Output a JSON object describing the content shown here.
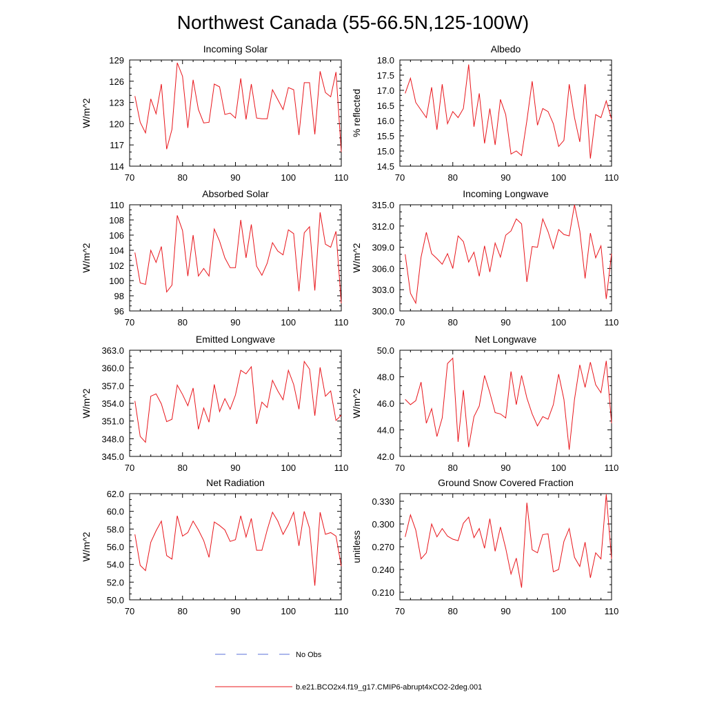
{
  "figure": {
    "title": "Northwest Canada (55-66.5N,125-100W)",
    "legend": [
      {
        "label": "No Obs",
        "color": "#5a6fd8",
        "style": "dashed"
      },
      {
        "label": "b.e21.BCO2x4.f19_g17.CMIP6-abrupt4xCO2-2deg.001",
        "color": "#e8141a",
        "style": "solid"
      }
    ]
  },
  "chart_data": [
    {
      "type": "line",
      "title": "Incoming Solar",
      "ylabel": "W/m^2",
      "xlim": [
        70,
        110
      ],
      "ylim": [
        114,
        129
      ],
      "yticks": [
        114,
        117,
        120,
        123,
        126,
        129
      ],
      "ytick_labels": [
        "114",
        "117",
        "120",
        "123",
        "126",
        "129"
      ],
      "xticks": [
        70,
        80,
        90,
        100,
        110
      ],
      "xtick_labels": [
        "70",
        "80",
        "90",
        "100",
        "110"
      ],
      "x": [
        71,
        72,
        73,
        74,
        75,
        76,
        77,
        78,
        79,
        80,
        81,
        82,
        83,
        84,
        85,
        86,
        87,
        88,
        89,
        90,
        91,
        92,
        93,
        94,
        95,
        96,
        97,
        98,
        99,
        100,
        101,
        102,
        103,
        104,
        105,
        106,
        107,
        108,
        109,
        110
      ],
      "series": [
        {
          "name": "b.e21.BCO2x4.f19_g17.CMIP6-abrupt4xCO2-2deg.001",
          "values": [
            123.9,
            120.2,
            118.7,
            123.5,
            121.4,
            125.6,
            116.4,
            119.2,
            128.6,
            126.7,
            119.4,
            126.2,
            122.0,
            120.1,
            120.2,
            125.6,
            125.2,
            121.3,
            121.5,
            120.8,
            126.4,
            120.6,
            125.6,
            120.8,
            120.7,
            120.7,
            124.8,
            123.4,
            122.0,
            125.1,
            124.8,
            118.4,
            125.8,
            125.8,
            118.5,
            127.4,
            124.4,
            123.8,
            127.3,
            116.0
          ]
        }
      ]
    },
    {
      "type": "line",
      "title": "Albedo",
      "ylabel": "% reflected",
      "xlim": [
        70,
        110
      ],
      "ylim": [
        14.5,
        18.0
      ],
      "yticks": [
        14.5,
        15.0,
        15.5,
        16.0,
        16.5,
        17.0,
        17.5,
        18.0
      ],
      "ytick_labels": [
        "14.5",
        "15.0",
        "15.5",
        "16.0",
        "16.5",
        "17.0",
        "17.5",
        "18.0"
      ],
      "xticks": [
        70,
        80,
        90,
        100,
        110
      ],
      "xtick_labels": [
        "70",
        "80",
        "90",
        "100",
        "110"
      ],
      "x": [
        71,
        72,
        73,
        74,
        75,
        76,
        77,
        78,
        79,
        80,
        81,
        82,
        83,
        84,
        85,
        86,
        87,
        88,
        89,
        90,
        91,
        92,
        93,
        94,
        95,
        96,
        97,
        98,
        99,
        100,
        101,
        102,
        103,
        104,
        105,
        106,
        107,
        108,
        109,
        110
      ],
      "series": [
        {
          "name": "b.e21.BCO2x4.f19_g17.CMIP6-abrupt4xCO2-2deg.001",
          "values": [
            16.9,
            17.4,
            16.6,
            16.35,
            16.1,
            17.1,
            15.7,
            17.2,
            15.9,
            16.3,
            16.1,
            16.4,
            17.85,
            15.8,
            16.9,
            15.25,
            16.4,
            15.2,
            16.7,
            16.2,
            14.9,
            15.0,
            14.85,
            16.0,
            17.3,
            15.85,
            16.4,
            16.3,
            15.9,
            15.15,
            15.35,
            17.2,
            16.1,
            15.3,
            17.2,
            14.75,
            16.2,
            16.1,
            16.65,
            16.05
          ]
        }
      ]
    },
    {
      "type": "line",
      "title": "Absorbed Solar",
      "ylabel": "W/m^2",
      "xlim": [
        70,
        110
      ],
      "ylim": [
        96,
        110
      ],
      "yticks": [
        96,
        98,
        100,
        102,
        104,
        106,
        108,
        110
      ],
      "ytick_labels": [
        "96",
        "98",
        "100",
        "102",
        "104",
        "106",
        "108",
        "110"
      ],
      "xticks": [
        70,
        80,
        90,
        100,
        110
      ],
      "xtick_labels": [
        "70",
        "80",
        "90",
        "100",
        "110"
      ],
      "x": [
        71,
        72,
        73,
        74,
        75,
        76,
        77,
        78,
        79,
        80,
        81,
        82,
        83,
        84,
        85,
        86,
        87,
        88,
        89,
        90,
        91,
        92,
        93,
        94,
        95,
        96,
        97,
        98,
        99,
        100,
        101,
        102,
        103,
        104,
        105,
        106,
        107,
        108,
        109,
        110
      ],
      "series": [
        {
          "name": "b.e21.BCO2x4.f19_g17.CMIP6-abrupt4xCO2-2deg.001",
          "values": [
            103.7,
            99.7,
            99.5,
            104.0,
            102.4,
            104.5,
            98.5,
            99.4,
            108.6,
            106.6,
            100.6,
            106.0,
            100.6,
            101.6,
            100.6,
            106.8,
            105.2,
            103.0,
            101.7,
            101.7,
            108.0,
            103.0,
            107.4,
            101.9,
            100.7,
            102.3,
            105.0,
            103.9,
            103.4,
            106.7,
            106.2,
            98.6,
            106.3,
            107.1,
            98.7,
            109.0,
            104.8,
            104.4,
            106.5,
            97.0
          ]
        }
      ]
    },
    {
      "type": "line",
      "title": "Incoming Longwave",
      "ylabel": "W/m^2",
      "xlim": [
        70,
        110
      ],
      "ylim": [
        300.0,
        315.0
      ],
      "yticks": [
        300,
        303,
        306,
        309,
        312,
        315
      ],
      "ytick_labels": [
        "300.0",
        "303.0",
        "306.0",
        "309.0",
        "312.0",
        "315.0"
      ],
      "xticks": [
        70,
        80,
        90,
        100,
        110
      ],
      "xtick_labels": [
        "70",
        "80",
        "90",
        "100",
        "110"
      ],
      "x": [
        71,
        72,
        73,
        74,
        75,
        76,
        77,
        78,
        79,
        80,
        81,
        82,
        83,
        84,
        85,
        86,
        87,
        88,
        89,
        90,
        91,
        92,
        93,
        94,
        95,
        96,
        97,
        98,
        99,
        100,
        101,
        102,
        103,
        104,
        105,
        106,
        107,
        108,
        109,
        110
      ],
      "series": [
        {
          "name": "b.e21.BCO2x4.f19_g17.CMIP6-abrupt4xCO2-2deg.001",
          "values": [
            308.0,
            302.5,
            301.1,
            307.6,
            311.1,
            308.1,
            307.4,
            306.6,
            308.1,
            306.0,
            310.6,
            309.8,
            306.9,
            308.3,
            304.9,
            309.2,
            305.5,
            309.6,
            307.6,
            310.7,
            311.3,
            313.0,
            312.3,
            304.1,
            309.1,
            309.0,
            313.0,
            311.2,
            308.8,
            311.5,
            310.8,
            310.6,
            315.0,
            311.3,
            304.6,
            311.0,
            307.5,
            309.2,
            301.7,
            308.1
          ]
        }
      ]
    },
    {
      "type": "line",
      "title": "Emitted Longwave",
      "ylabel": "W/m^2",
      "xlim": [
        70,
        110
      ],
      "ylim": [
        345.0,
        363.0
      ],
      "yticks": [
        345,
        348,
        351,
        354,
        357,
        360,
        363
      ],
      "ytick_labels": [
        "345.0",
        "348.0",
        "351.0",
        "354.0",
        "357.0",
        "360.0",
        "363.0"
      ],
      "xticks": [
        70,
        80,
        90,
        100,
        110
      ],
      "xtick_labels": [
        "70",
        "80",
        "90",
        "100",
        "110"
      ],
      "x": [
        71,
        72,
        73,
        74,
        75,
        76,
        77,
        78,
        79,
        80,
        81,
        82,
        83,
        84,
        85,
        86,
        87,
        88,
        89,
        90,
        91,
        92,
        93,
        94,
        95,
        96,
        97,
        98,
        99,
        100,
        101,
        102,
        103,
        104,
        105,
        106,
        107,
        108,
        109,
        110
      ],
      "series": [
        {
          "name": "b.e21.BCO2x4.f19_g17.CMIP6-abrupt4xCO2-2deg.001",
          "values": [
            354.4,
            348.4,
            347.4,
            355.2,
            355.6,
            353.9,
            350.9,
            351.3,
            357.1,
            355.5,
            353.6,
            356.6,
            349.6,
            353.2,
            350.8,
            357.2,
            352.6,
            354.8,
            353.0,
            355.4,
            359.6,
            359.0,
            360.2,
            350.5,
            354.2,
            353.3,
            357.9,
            356.1,
            354.6,
            359.6,
            357.2,
            353.0,
            361.1,
            359.8,
            351.9,
            360.1,
            355.2,
            356.1,
            351.1,
            352.0
          ]
        }
      ]
    },
    {
      "type": "line",
      "title": "Net Longwave",
      "ylabel": "W/m^2",
      "xlim": [
        70,
        110
      ],
      "ylim": [
        42.0,
        50.0
      ],
      "yticks": [
        42,
        44,
        46,
        48,
        50
      ],
      "ytick_labels": [
        "42.0",
        "44.0",
        "46.0",
        "48.0",
        "50.0"
      ],
      "xticks": [
        70,
        80,
        90,
        100,
        110
      ],
      "xtick_labels": [
        "70",
        "80",
        "90",
        "100",
        "110"
      ],
      "x": [
        71,
        72,
        73,
        74,
        75,
        76,
        77,
        78,
        79,
        80,
        81,
        82,
        83,
        84,
        85,
        86,
        87,
        88,
        89,
        90,
        91,
        92,
        93,
        94,
        95,
        96,
        97,
        98,
        99,
        100,
        101,
        102,
        103,
        104,
        105,
        106,
        107,
        108,
        109,
        110
      ],
      "series": [
        {
          "name": "b.e21.BCO2x4.f19_g17.CMIP6-abrupt4xCO2-2deg.001",
          "values": [
            46.3,
            45.9,
            46.2,
            47.6,
            44.5,
            45.6,
            43.5,
            44.9,
            49.0,
            49.4,
            43.1,
            47.0,
            42.7,
            45.0,
            45.8,
            48.1,
            46.8,
            45.3,
            45.2,
            44.9,
            48.4,
            45.9,
            48.1,
            46.4,
            45.2,
            44.3,
            45.0,
            44.8,
            45.9,
            48.2,
            46.3,
            42.5,
            46.3,
            48.9,
            47.2,
            49.1,
            47.4,
            46.8,
            49.2,
            44.5
          ]
        }
      ]
    },
    {
      "type": "line",
      "title": "Net Radiation",
      "ylabel": "W/m^2",
      "xlim": [
        70,
        110
      ],
      "ylim": [
        50.0,
        62.0
      ],
      "yticks": [
        50,
        52,
        54,
        56,
        58,
        60,
        62
      ],
      "ytick_labels": [
        "50.0",
        "52.0",
        "54.0",
        "56.0",
        "58.0",
        "60.0",
        "62.0"
      ],
      "xticks": [
        70,
        80,
        90,
        100,
        110
      ],
      "xtick_labels": [
        "70",
        "80",
        "90",
        "100",
        "110"
      ],
      "x": [
        71,
        72,
        73,
        74,
        75,
        76,
        77,
        78,
        79,
        80,
        81,
        82,
        83,
        84,
        85,
        86,
        87,
        88,
        89,
        90,
        91,
        92,
        93,
        94,
        95,
        96,
        97,
        98,
        99,
        100,
        101,
        102,
        103,
        104,
        105,
        106,
        107,
        108,
        109,
        110
      ],
      "series": [
        {
          "name": "b.e21.BCO2x4.f19_g17.CMIP6-abrupt4xCO2-2deg.001",
          "values": [
            57.4,
            53.9,
            53.3,
            56.5,
            57.8,
            58.9,
            55.0,
            54.6,
            59.5,
            57.2,
            57.6,
            58.9,
            57.9,
            56.7,
            54.8,
            58.8,
            58.4,
            57.9,
            56.6,
            56.8,
            59.5,
            57.1,
            59.2,
            55.6,
            55.6,
            57.9,
            59.9,
            58.9,
            57.4,
            58.5,
            59.9,
            56.1,
            60.0,
            58.1,
            51.6,
            59.9,
            57.4,
            57.6,
            57.2,
            53.8
          ]
        }
      ]
    },
    {
      "type": "line",
      "title": "Ground Snow Covered Fraction",
      "ylabel": "unitless",
      "xlim": [
        70,
        110
      ],
      "ylim": [
        0.2,
        0.34
      ],
      "yticks": [
        0.21,
        0.24,
        0.27,
        0.3,
        0.33
      ],
      "ytick_labels": [
        "0.210",
        "0.240",
        "0.270",
        "0.300",
        "0.330"
      ],
      "xticks": [
        70,
        80,
        90,
        100,
        110
      ],
      "xtick_labels": [
        "70",
        "80",
        "90",
        "100",
        "110"
      ],
      "x": [
        71,
        72,
        73,
        74,
        75,
        76,
        77,
        78,
        79,
        80,
        81,
        82,
        83,
        84,
        85,
        86,
        87,
        88,
        89,
        90,
        91,
        92,
        93,
        94,
        95,
        96,
        97,
        98,
        99,
        100,
        101,
        102,
        103,
        104,
        105,
        106,
        107,
        108,
        109,
        110
      ],
      "series": [
        {
          "name": "b.e21.BCO2x4.f19_g17.CMIP6-abrupt4xCO2-2deg.001",
          "values": [
            0.283,
            0.312,
            0.292,
            0.254,
            0.262,
            0.3,
            0.283,
            0.294,
            0.284,
            0.28,
            0.278,
            0.301,
            0.309,
            0.282,
            0.294,
            0.268,
            0.307,
            0.264,
            0.296,
            0.268,
            0.234,
            0.255,
            0.216,
            0.328,
            0.266,
            0.262,
            0.286,
            0.287,
            0.237,
            0.24,
            0.277,
            0.294,
            0.256,
            0.244,
            0.276,
            0.229,
            0.262,
            0.254,
            0.339,
            0.254
          ]
        }
      ]
    }
  ]
}
